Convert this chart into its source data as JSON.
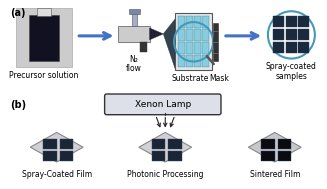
{
  "panel_a_label": "(a)",
  "panel_b_label": "(b)",
  "bg_color": "#ffffff",
  "arrow_color": "#4472c4",
  "dark_blue": "#1a2a3c",
  "light_blue_grid": "#88ccdd",
  "label_precursor": "Precursor solution",
  "label_n2": "N₂\nflow",
  "label_substrate": "Substrate",
  "label_mask": "Mask",
  "label_spray": "Spray-coated\nsamples",
  "label_xenon": "Xenon Lamp",
  "label_spray_film": "Spray-Coated Film",
  "label_photonic": "Photonic Processing",
  "label_sintered": "Sintered Film",
  "font_size_label": 5.5,
  "font_size_panel": 7,
  "font_size_xenon": 6.5
}
